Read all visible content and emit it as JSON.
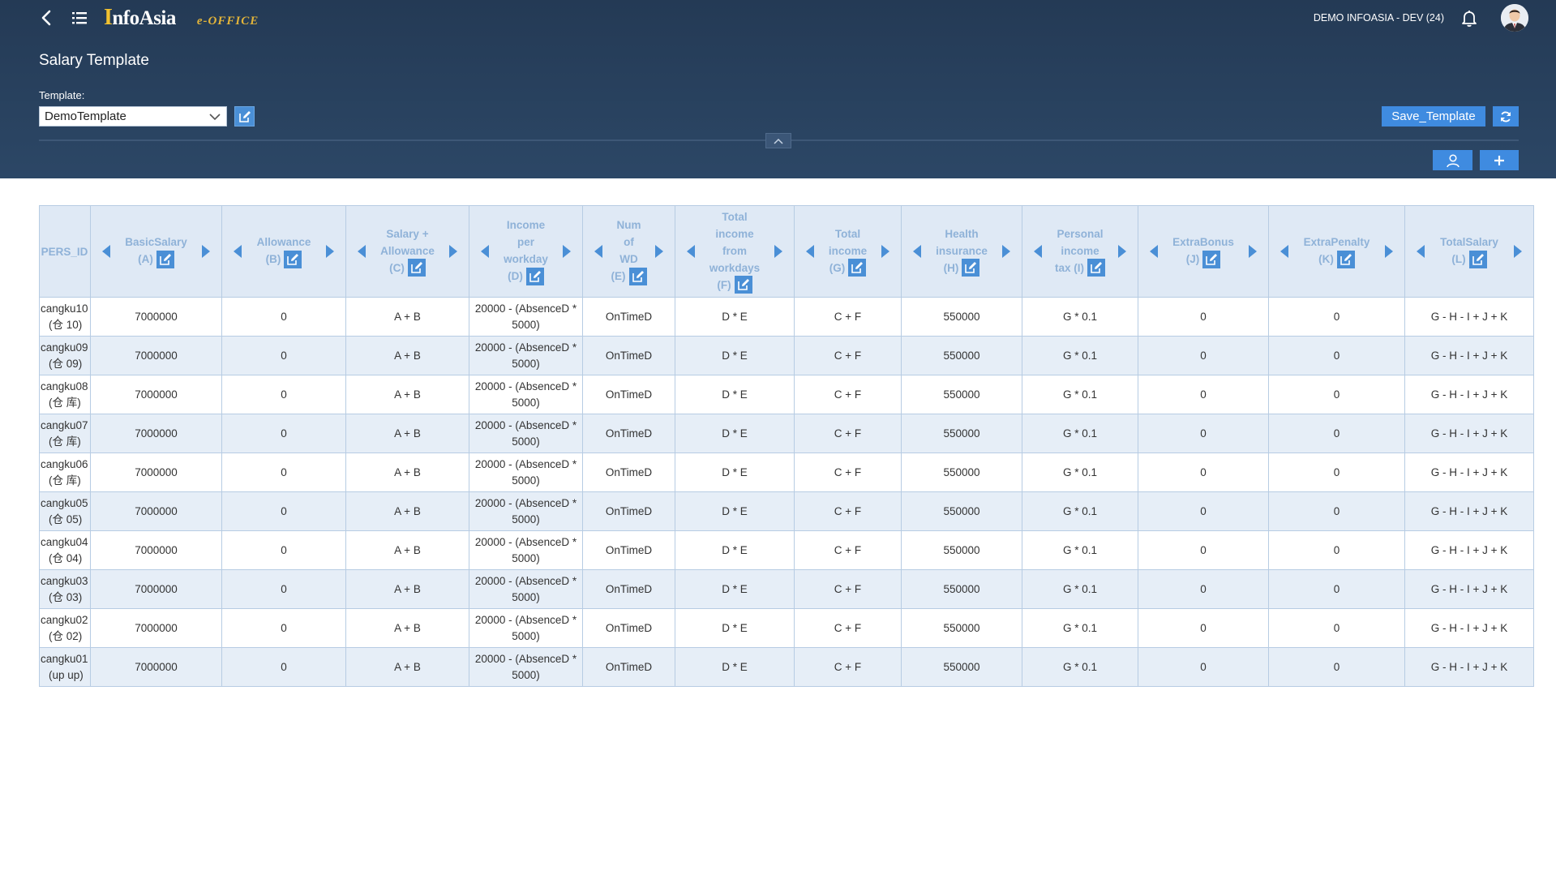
{
  "header": {
    "company": "DEMO INFOASIA - DEV (24)",
    "logo_first": "I",
    "logo_rest": "nfoAsia",
    "logo_sub": "e-OFFICE"
  },
  "page": {
    "title": "Salary Template",
    "template_label": "Template:",
    "template_value": "DemoTemplate",
    "save_label": "Save_Template"
  },
  "colors": {
    "header_bg": "#2c4766",
    "accent": "#4a8fd6",
    "row_alt": "#e6eef7",
    "header_text": "#8fb2d8"
  },
  "icons": [
    "back-icon",
    "menu-icon",
    "bell-icon",
    "avatar",
    "edit-icon",
    "refresh-icon",
    "chevron-up-icon",
    "user-icon",
    "plus-icon",
    "arrow-left-icon",
    "arrow-right-icon"
  ],
  "table": {
    "columns": [
      {
        "lines": [
          "PERS_ID"
        ],
        "edit": false,
        "arrows": false
      },
      {
        "lines": [
          "BasicSalary",
          "(A)"
        ],
        "edit": true,
        "arrows": true
      },
      {
        "lines": [
          "Allowance",
          "(B)"
        ],
        "edit": true,
        "arrows": true
      },
      {
        "lines": [
          "Salary +",
          "Allowance",
          "(C)"
        ],
        "edit": true,
        "arrows": true
      },
      {
        "lines": [
          "Income",
          "per",
          "workday",
          "(D)"
        ],
        "edit": true,
        "arrows": true
      },
      {
        "lines": [
          "Num",
          "of",
          "WD",
          "(E)"
        ],
        "edit": true,
        "arrows": true
      },
      {
        "lines": [
          "Total",
          "income",
          "from",
          "workdays",
          "(F)"
        ],
        "edit": true,
        "arrows": true
      },
      {
        "lines": [
          "Total",
          "income",
          "(G)"
        ],
        "edit": true,
        "arrows": true
      },
      {
        "lines": [
          "Health",
          "insurance",
          "(H)"
        ],
        "edit": true,
        "arrows": true
      },
      {
        "lines": [
          "Personal",
          "income",
          "tax (I)"
        ],
        "edit": true,
        "arrows": true
      },
      {
        "lines": [
          "ExtraBonus",
          "(J)"
        ],
        "edit": true,
        "arrows": true
      },
      {
        "lines": [
          "ExtraPenalty",
          "(K)"
        ],
        "edit": true,
        "arrows": true
      },
      {
        "lines": [
          "TotalSalary",
          "(L)"
        ],
        "edit": true,
        "arrows": true
      }
    ],
    "rows": [
      {
        "id": [
          "cangku10",
          "(仓 10)"
        ],
        "cells": [
          "7000000",
          "0",
          "A + B",
          [
            "20000 - (AbsenceD *",
            "5000)"
          ],
          "OnTimeD",
          "D * E",
          "C + F",
          "550000",
          "G * 0.1",
          "0",
          "0",
          "G - H - I + J + K"
        ]
      },
      {
        "id": [
          "cangku09",
          "(仓 09)"
        ],
        "cells": [
          "7000000",
          "0",
          "A + B",
          [
            "20000 - (AbsenceD *",
            "5000)"
          ],
          "OnTimeD",
          "D * E",
          "C + F",
          "550000",
          "G * 0.1",
          "0",
          "0",
          "G - H - I + J + K"
        ]
      },
      {
        "id": [
          "cangku08",
          "(仓 库)"
        ],
        "cells": [
          "7000000",
          "0",
          "A + B",
          [
            "20000 - (AbsenceD *",
            "5000)"
          ],
          "OnTimeD",
          "D * E",
          "C + F",
          "550000",
          "G * 0.1",
          "0",
          "0",
          "G - H - I + J + K"
        ]
      },
      {
        "id": [
          "cangku07",
          "(仓 库)"
        ],
        "cells": [
          "7000000",
          "0",
          "A + B",
          [
            "20000 - (AbsenceD *",
            "5000)"
          ],
          "OnTimeD",
          "D * E",
          "C + F",
          "550000",
          "G * 0.1",
          "0",
          "0",
          "G - H - I + J + K"
        ]
      },
      {
        "id": [
          "cangku06",
          "(仓 库)"
        ],
        "cells": [
          "7000000",
          "0",
          "A + B",
          [
            "20000 - (AbsenceD *",
            "5000)"
          ],
          "OnTimeD",
          "D * E",
          "C + F",
          "550000",
          "G * 0.1",
          "0",
          "0",
          "G - H - I + J + K"
        ]
      },
      {
        "id": [
          "cangku05",
          "(仓 05)"
        ],
        "cells": [
          "7000000",
          "0",
          "A + B",
          [
            "20000 - (AbsenceD *",
            "5000)"
          ],
          "OnTimeD",
          "D * E",
          "C + F",
          "550000",
          "G * 0.1",
          "0",
          "0",
          "G - H - I + J + K"
        ]
      },
      {
        "id": [
          "cangku04",
          "(仓 04)"
        ],
        "cells": [
          "7000000",
          "0",
          "A + B",
          [
            "20000 - (AbsenceD *",
            "5000)"
          ],
          "OnTimeD",
          "D * E",
          "C + F",
          "550000",
          "G * 0.1",
          "0",
          "0",
          "G - H - I + J + K"
        ]
      },
      {
        "id": [
          "cangku03",
          "(仓 03)"
        ],
        "cells": [
          "7000000",
          "0",
          "A + B",
          [
            "20000 - (AbsenceD *",
            "5000)"
          ],
          "OnTimeD",
          "D * E",
          "C + F",
          "550000",
          "G * 0.1",
          "0",
          "0",
          "G - H - I + J + K"
        ]
      },
      {
        "id": [
          "cangku02",
          "(仓 02)"
        ],
        "cells": [
          "7000000",
          "0",
          "A + B",
          [
            "20000 - (AbsenceD *",
            "5000)"
          ],
          "OnTimeD",
          "D * E",
          "C + F",
          "550000",
          "G * 0.1",
          "0",
          "0",
          "G - H - I + J + K"
        ]
      },
      {
        "id": [
          "cangku01",
          "(up up)"
        ],
        "cells": [
          "7000000",
          "0",
          "A + B",
          [
            "20000 - (AbsenceD *",
            "5000)"
          ],
          "OnTimeD",
          "D * E",
          "C + F",
          "550000",
          "G * 0.1",
          "0",
          "0",
          "G - H - I + J + K"
        ]
      }
    ]
  }
}
